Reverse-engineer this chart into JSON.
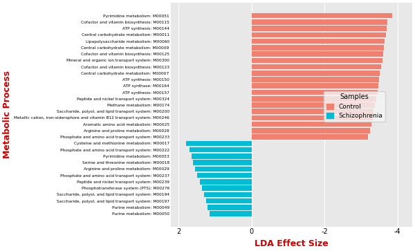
{
  "categories": [
    "Pyrimidine metabolism: M00051",
    "Cofactor and vitamin biosynthesis: M00115",
    "ATP synthesis: M00144",
    "Central carbohydrate metabolism: M00011",
    "Lipopolysaccharide metabolism: M00060",
    "Central carbohydrate metabolism: M00009",
    "Cofactor and vitamin biosynthesis: M00125",
    "Mineral and organic ion transport system: M00300",
    "Cofactor and vitamin biosynthesis: M00123",
    "Central carbohydrate metabolism: M00007",
    "ATP synthesis: M00150",
    "ATP synthase: M00164",
    "ATP synthesis: M00157",
    "Peptide and nickel transport system: M00324",
    "Methane metabolism: M00174",
    "Saccharide, polyol, and lipid transport system: M00200",
    "Metallic cation, iron-siderophore and vitamin B12 transport system: M00246",
    "Aromatic amino acid metabolism: M00025",
    "Arginine and proline metabolism: M00028",
    "Phosphate and amino acid transport system: M00233",
    "Cysteine and methionine metabolism: M00017",
    "Phosphate and amino acid transport system: M00222",
    "Pyrimidine metabolism: M00053",
    "Serine and threonine metabolism: M00018",
    "Arginine and proline metabolism: M00029",
    "Phosphate and amino acid transport system: M00237",
    "Peptide and nickel transport system: M00239",
    "Phosphotransferase system (PTS): M00276",
    "Saccharide, polyol, and lipid transport system: M00194",
    "Saccharide, polyol, and lipid transport system: M00197",
    "Purine metabolism: M00049",
    "Purine metabolism: M00050"
  ],
  "values": [
    -3.85,
    -3.72,
    -3.7,
    -3.68,
    -3.65,
    -3.62,
    -3.6,
    -3.58,
    -3.55,
    -3.52,
    -3.5,
    -3.48,
    -3.45,
    -3.42,
    -3.38,
    -3.35,
    -3.32,
    -3.28,
    -3.25,
    -3.2,
    1.8,
    1.7,
    1.65,
    1.6,
    1.55,
    1.48,
    1.42,
    1.35,
    1.3,
    1.25,
    1.2,
    1.15
  ],
  "colors": [
    "#F08070",
    "#F08070",
    "#F08070",
    "#F08070",
    "#F08070",
    "#F08070",
    "#F08070",
    "#F08070",
    "#F08070",
    "#F08070",
    "#F08070",
    "#F08070",
    "#F08070",
    "#F08070",
    "#F08070",
    "#F08070",
    "#F08070",
    "#F08070",
    "#F08070",
    "#F08070",
    "#00BCD4",
    "#00BCD4",
    "#00BCD4",
    "#00BCD4",
    "#00BCD4",
    "#00BCD4",
    "#00BCD4",
    "#00BCD4",
    "#00BCD4",
    "#00BCD4",
    "#00BCD4",
    "#00BCD4"
  ],
  "control_color": "#F08070",
  "schizophrenia_color": "#00BCD4",
  "xlabel": "LDA Effect Size",
  "ylabel": "Metabolic Process",
  "ylabel_color": "#CC0000",
  "xlabel_color": "#CC0000",
  "xlim": [
    2.2,
    -4.4
  ],
  "xticks": [
    2,
    0,
    -2,
    -4
  ],
  "background_color": "#E8E8E8",
  "grid_color": "#FFFFFF",
  "legend_title": "Samples",
  "legend_labels": [
    "Control",
    "Schizophrenia"
  ]
}
